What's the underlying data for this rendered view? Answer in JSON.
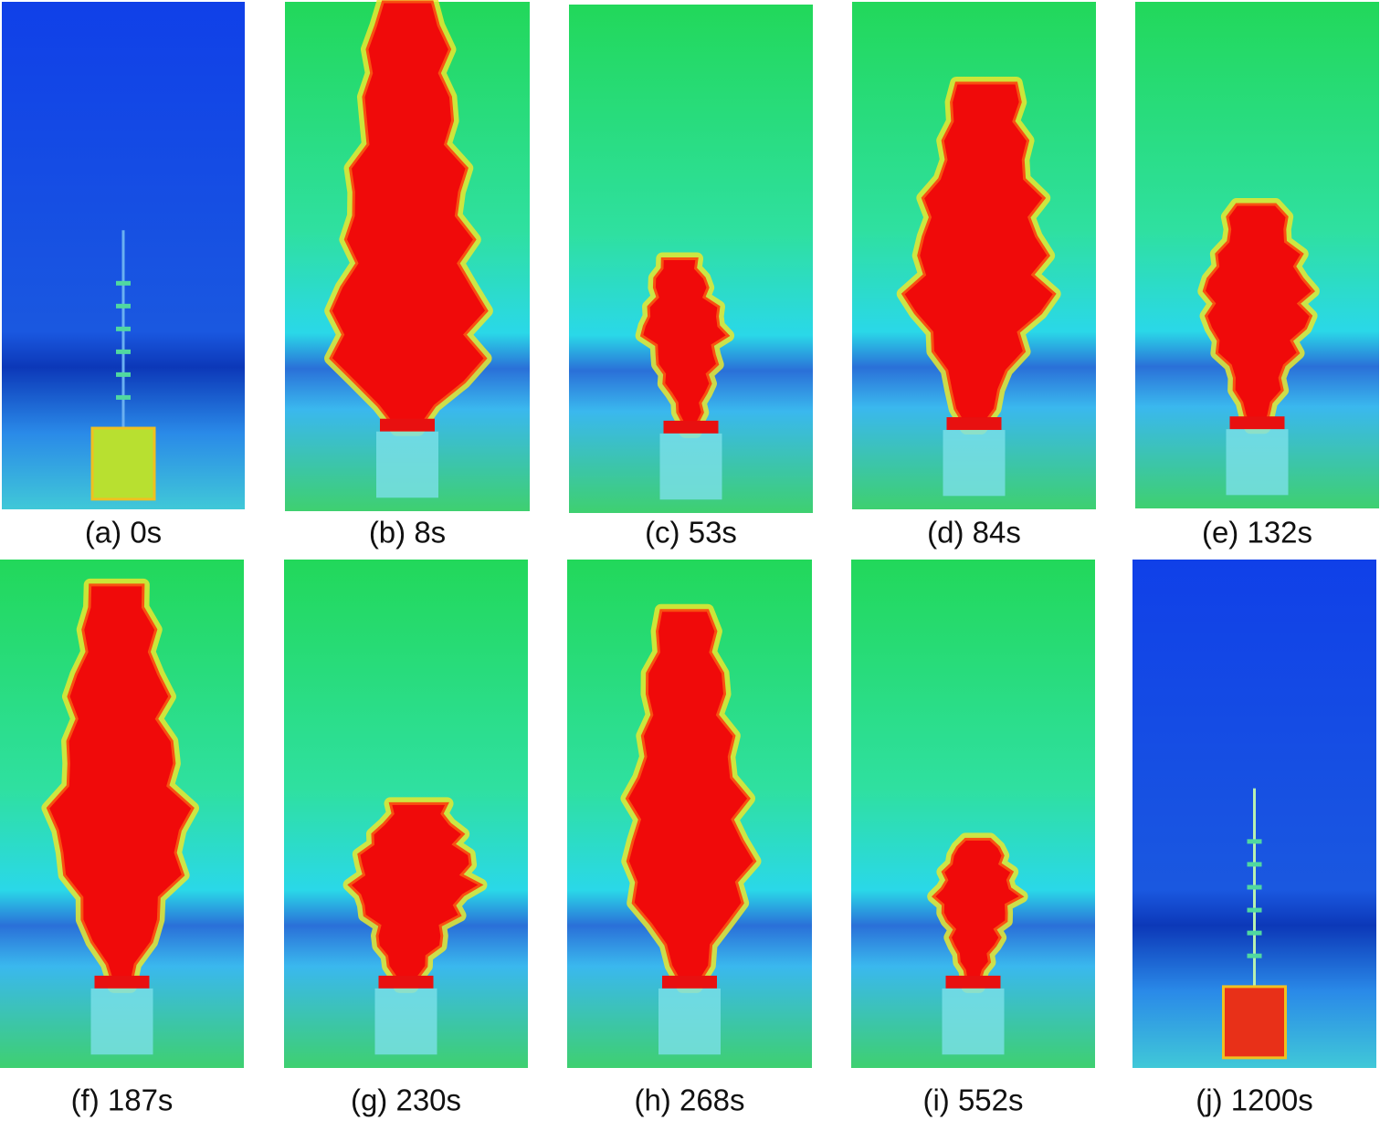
{
  "panels": [
    {
      "label": "(a) 0s"
    },
    {
      "label": "(b) 8s"
    },
    {
      "label": "(c) 53s"
    },
    {
      "label": "(d) 84s"
    },
    {
      "label": "(e) 132s"
    },
    {
      "label": "(f) 187s"
    },
    {
      "label": "(g) 230s"
    },
    {
      "label": "(h) 268s"
    },
    {
      "label": "(i) 552s"
    },
    {
      "label": "(j) 1200s"
    }
  ]
}
